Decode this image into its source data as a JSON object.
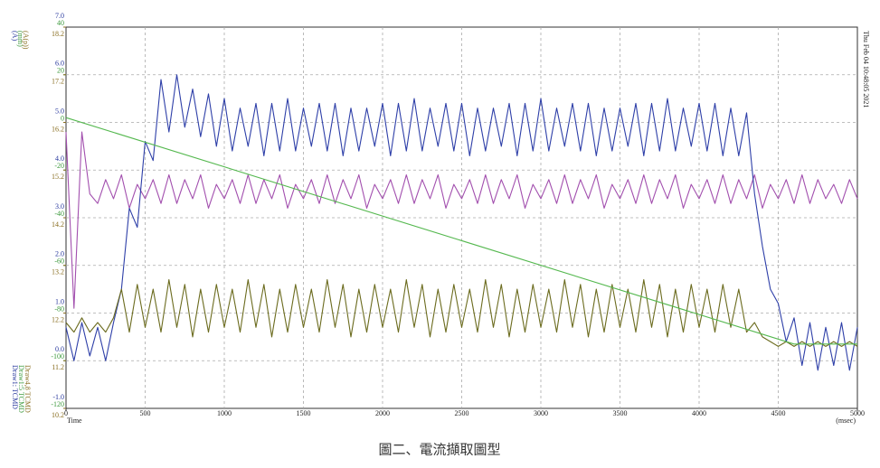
{
  "chart_data": {
    "type": "line",
    "grid": true,
    "x": [
      0,
      50,
      100,
      150,
      200,
      250,
      300,
      350,
      400,
      450,
      500,
      550,
      600,
      650,
      700,
      750,
      800,
      850,
      900,
      950,
      1000,
      1050,
      1100,
      1150,
      1200,
      1250,
      1300,
      1350,
      1400,
      1450,
      1500,
      1550,
      1600,
      1650,
      1700,
      1750,
      1800,
      1850,
      1900,
      1950,
      2000,
      2050,
      2100,
      2150,
      2200,
      2250,
      2300,
      2350,
      2400,
      2450,
      2500,
      2550,
      2600,
      2650,
      2700,
      2750,
      2800,
      2850,
      2900,
      2950,
      3000,
      3050,
      3100,
      3150,
      3200,
      3250,
      3300,
      3350,
      3400,
      3450,
      3500,
      3550,
      3600,
      3650,
      3700,
      3750,
      3800,
      3850,
      3900,
      3950,
      4000,
      4050,
      4100,
      4150,
      4200,
      4250,
      4300,
      4350,
      4400,
      4450,
      4500,
      4550,
      4600,
      4650,
      4700,
      4750,
      4800,
      4850,
      4900,
      4950,
      5000
    ],
    "xlim": [
      0,
      5000
    ],
    "xticks": [
      0,
      500,
      1000,
      1500,
      2000,
      2500,
      3000,
      3500,
      4000,
      4500,
      5000
    ],
    "x_label": "Time",
    "x_unit": "(msec)",
    "ylim": [
      -1,
      7
    ],
    "yticks": [
      {
        "value": 7,
        "label": "7.0"
      },
      {
        "value": 6,
        "label": "6.0"
      },
      {
        "value": 5,
        "label": "5.0"
      },
      {
        "value": 4,
        "label": "4.0"
      },
      {
        "value": 3,
        "label": "3.0"
      },
      {
        "value": 2,
        "label": "2.0"
      },
      {
        "value": 1,
        "label": "1.0"
      },
      {
        "value": 0,
        "label": "0.0"
      },
      {
        "value": -1,
        "label": "-1.0"
      }
    ],
    "y_color": "#2a3a9e",
    "y2lim": [
      -120,
      40
    ],
    "y2ticks": [
      40,
      20,
      0,
      -20,
      -40,
      -60,
      -80,
      -100,
      -120
    ],
    "y2_color": "#3e9a3e",
    "y3lim": [
      10.2,
      18.2
    ],
    "y3ticks": [
      18.2,
      17.2,
      16.2,
      15.2,
      14.2,
      13.2,
      12.2,
      11.2,
      10.2
    ],
    "y3_color": "#8a6f22",
    "axis_units": [
      "(A)",
      "(mm)",
      "(A(p))"
    ],
    "channel_labels": [
      "Draw1: TCMD",
      "Draw1:5 TCMD",
      "Draw4,8 TCMD"
    ],
    "timestamp": "Thu Feb 04 10:48:05 2021",
    "series": [
      {
        "color": "#a24fae",
        "axis": "y",
        "values": [
          4.8,
          1.1,
          4.8,
          3.5,
          3.3,
          3.8,
          3.4,
          3.9,
          3.2,
          3.7,
          3.4,
          3.8,
          3.3,
          3.9,
          3.3,
          3.8,
          3.4,
          3.9,
          3.2,
          3.7,
          3.4,
          3.8,
          3.3,
          3.9,
          3.3,
          3.8,
          3.4,
          3.9,
          3.2,
          3.7,
          3.4,
          3.8,
          3.3,
          3.9,
          3.3,
          3.8,
          3.4,
          3.9,
          3.2,
          3.7,
          3.4,
          3.8,
          3.3,
          3.9,
          3.3,
          3.8,
          3.4,
          3.9,
          3.2,
          3.7,
          3.4,
          3.8,
          3.3,
          3.9,
          3.3,
          3.8,
          3.4,
          3.9,
          3.2,
          3.7,
          3.4,
          3.8,
          3.3,
          3.9,
          3.3,
          3.8,
          3.4,
          3.9,
          3.2,
          3.7,
          3.4,
          3.8,
          3.3,
          3.9,
          3.3,
          3.8,
          3.4,
          3.9,
          3.2,
          3.7,
          3.4,
          3.8,
          3.3,
          3.9,
          3.3,
          3.8,
          3.4,
          3.9,
          3.2,
          3.7,
          3.4,
          3.8,
          3.3,
          3.9,
          3.3,
          3.8,
          3.4,
          3.7,
          3.3,
          3.8,
          3.4
        ]
      },
      {
        "color": "#2e3fa8",
        "axis": "y",
        "values": [
          0.7,
          0.0,
          0.8,
          0.1,
          0.7,
          0.0,
          0.8,
          1.5,
          3.2,
          2.8,
          4.6,
          4.2,
          5.9,
          4.8,
          6.0,
          4.9,
          5.7,
          4.7,
          5.6,
          4.5,
          5.5,
          4.4,
          5.3,
          4.5,
          5.4,
          4.3,
          5.4,
          4.4,
          5.5,
          4.4,
          5.3,
          4.5,
          5.4,
          4.4,
          5.4,
          4.3,
          5.3,
          4.4,
          5.3,
          4.5,
          5.4,
          4.3,
          5.4,
          4.4,
          5.5,
          4.4,
          5.3,
          4.5,
          5.4,
          4.4,
          5.4,
          4.3,
          5.3,
          4.4,
          5.3,
          4.5,
          5.4,
          4.3,
          5.4,
          4.4,
          5.5,
          4.4,
          5.3,
          4.5,
          5.4,
          4.4,
          5.4,
          4.3,
          5.3,
          4.4,
          5.3,
          4.5,
          5.4,
          4.3,
          5.4,
          4.4,
          5.5,
          4.4,
          5.3,
          4.5,
          5.4,
          4.4,
          5.4,
          4.3,
          5.3,
          4.3,
          5.2,
          3.5,
          2.4,
          1.5,
          1.2,
          0.4,
          0.9,
          -0.1,
          0.8,
          -0.2,
          0.7,
          -0.1,
          0.8,
          -0.2,
          0.7
        ]
      },
      {
        "color": "#6b6b1e",
        "axis": "y3",
        "values": [
          12.0,
          11.8,
          12.1,
          11.8,
          12.0,
          11.8,
          12.1,
          12.7,
          11.8,
          12.8,
          11.9,
          12.7,
          11.8,
          12.9,
          11.9,
          12.8,
          11.7,
          12.7,
          11.8,
          12.8,
          11.9,
          12.7,
          11.8,
          12.9,
          11.9,
          12.8,
          11.7,
          12.7,
          11.8,
          12.8,
          11.9,
          12.7,
          11.8,
          12.9,
          11.9,
          12.8,
          11.7,
          12.7,
          11.8,
          12.8,
          11.9,
          12.7,
          11.8,
          12.9,
          11.9,
          12.8,
          11.7,
          12.7,
          11.8,
          12.8,
          11.9,
          12.7,
          11.8,
          12.9,
          11.9,
          12.8,
          11.7,
          12.7,
          11.8,
          12.8,
          11.9,
          12.7,
          11.8,
          12.9,
          11.9,
          12.8,
          11.7,
          12.7,
          11.8,
          12.8,
          11.9,
          12.7,
          11.8,
          12.9,
          11.9,
          12.8,
          11.7,
          12.7,
          11.8,
          12.8,
          11.9,
          12.7,
          11.8,
          12.8,
          11.9,
          12.7,
          11.8,
          12.0,
          11.7,
          11.6,
          11.5,
          11.6,
          11.5,
          11.6,
          11.5,
          11.6,
          11.5,
          11.6,
          11.5,
          11.6,
          11.5
        ]
      },
      {
        "color": "#55b84f",
        "axis": "y2",
        "x": [
          0,
          4600,
          5000
        ],
        "values": [
          2,
          -93,
          -93
        ]
      }
    ]
  },
  "caption": "圖二、電流擷取圖型"
}
